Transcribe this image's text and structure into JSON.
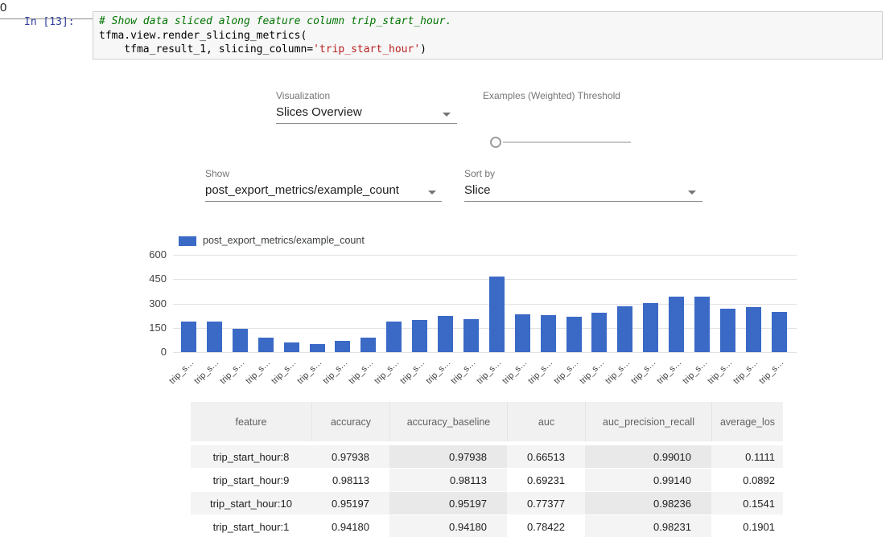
{
  "notebook": {
    "prompt": "In [13]:",
    "code": {
      "comment": "# Show data sliced along feature column trip_start_hour.",
      "line2": "tfma.view.render_slicing_metrics(",
      "line3_pre": "    tfma_result_1, slicing_column=",
      "line3_string": "'trip_start_hour'",
      "line3_post": ")"
    }
  },
  "controls": {
    "visualization": {
      "label": "Visualization",
      "value": "Slices Overview"
    },
    "threshold": {
      "label": "Examples (Weighted) Threshold",
      "value": "0"
    },
    "show": {
      "label": "Show",
      "value": "post_export_metrics/example_count"
    },
    "sort": {
      "label": "Sort by",
      "value": "Slice"
    }
  },
  "chart_data": {
    "type": "bar",
    "title": "",
    "legend": "post_export_metrics/example_count",
    "legend_position": "top-left",
    "bar_color": "#3b69c6",
    "grid": true,
    "ylim": [
      0,
      600
    ],
    "yticks": [
      0,
      150,
      300,
      450,
      600
    ],
    "categories": [
      "trip_s…",
      "trip_s…",
      "trip_s…",
      "trip_s…",
      "trip_s…",
      "trip_s…",
      "trip_s…",
      "trip_s…",
      "trip_s…",
      "trip_s…",
      "trip_s…",
      "trip_s…",
      "trip_s…",
      "trip_s…",
      "trip_s…",
      "trip_s…",
      "trip_s…",
      "trip_s…",
      "trip_s…",
      "trip_s…",
      "trip_s…",
      "trip_s…",
      "trip_s…",
      "trip_s…"
    ],
    "values": [
      190,
      190,
      145,
      90,
      60,
      50,
      70,
      90,
      190,
      200,
      225,
      205,
      465,
      235,
      230,
      220,
      245,
      285,
      305,
      340,
      340,
      270,
      280,
      250
    ]
  },
  "table": {
    "headers": [
      "feature",
      "accuracy",
      "accuracy_baseline",
      "auc",
      "auc_precision_recall",
      "average_los"
    ],
    "rows": [
      [
        "trip_start_hour:8",
        "0.97938",
        "0.97938",
        "0.66513",
        "0.99010",
        "0.1111"
      ],
      [
        "trip_start_hour:9",
        "0.98113",
        "0.98113",
        "0.69231",
        "0.99140",
        "0.0892"
      ],
      [
        "trip_start_hour:10",
        "0.95197",
        "0.95197",
        "0.77377",
        "0.98236",
        "0.1541"
      ],
      [
        "trip_start_hour:1",
        "0.94180",
        "0.94180",
        "0.78422",
        "0.98231",
        "0.1901"
      ]
    ]
  }
}
